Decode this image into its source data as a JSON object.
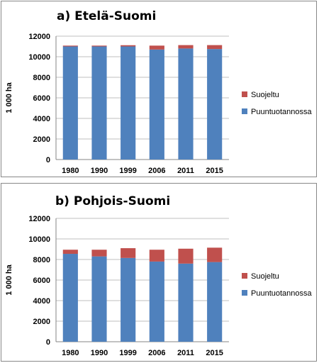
{
  "colors": {
    "protected": "#C0504D",
    "production": "#4F81BD",
    "grid": "#BFBFBF",
    "axis": "#868686"
  },
  "legend": {
    "protected_label": "Suojeltu",
    "production_label": "Puuntuotannossa"
  },
  "chart_data": [
    {
      "type": "bar",
      "stacked": true,
      "title": "a) Etelä-Suomi",
      "ylabel": "1 000 ha",
      "ylim": [
        0,
        12000
      ],
      "yticks": [
        0,
        2000,
        4000,
        6000,
        8000,
        10000,
        12000
      ],
      "categories": [
        "1980",
        "1990",
        "1999",
        "2006",
        "2011",
        "2015"
      ],
      "series": [
        {
          "name": "Puuntuotannossa",
          "color": "#4F81BD",
          "values": [
            11000,
            11000,
            11000,
            10700,
            10800,
            10750
          ]
        },
        {
          "name": "Suojeltu",
          "color": "#C0504D",
          "values": [
            80,
            80,
            120,
            380,
            330,
            380
          ]
        }
      ],
      "legend_position": "right",
      "grid": true
    },
    {
      "type": "bar",
      "stacked": true,
      "title": "b) Pohjois-Suomi",
      "ylabel": "1 000 ha",
      "ylim": [
        0,
        12000
      ],
      "yticks": [
        0,
        2000,
        4000,
        6000,
        8000,
        10000,
        12000
      ],
      "categories": [
        "1980",
        "1990",
        "1999",
        "2006",
        "2011",
        "2015"
      ],
      "series": [
        {
          "name": "Puuntuotannossa",
          "color": "#4F81BD",
          "values": [
            8550,
            8300,
            8150,
            7800,
            7600,
            7750
          ]
        },
        {
          "name": "Suojeltu",
          "color": "#C0504D",
          "values": [
            400,
            650,
            950,
            1150,
            1450,
            1400
          ]
        }
      ],
      "legend_position": "right",
      "grid": true
    }
  ]
}
